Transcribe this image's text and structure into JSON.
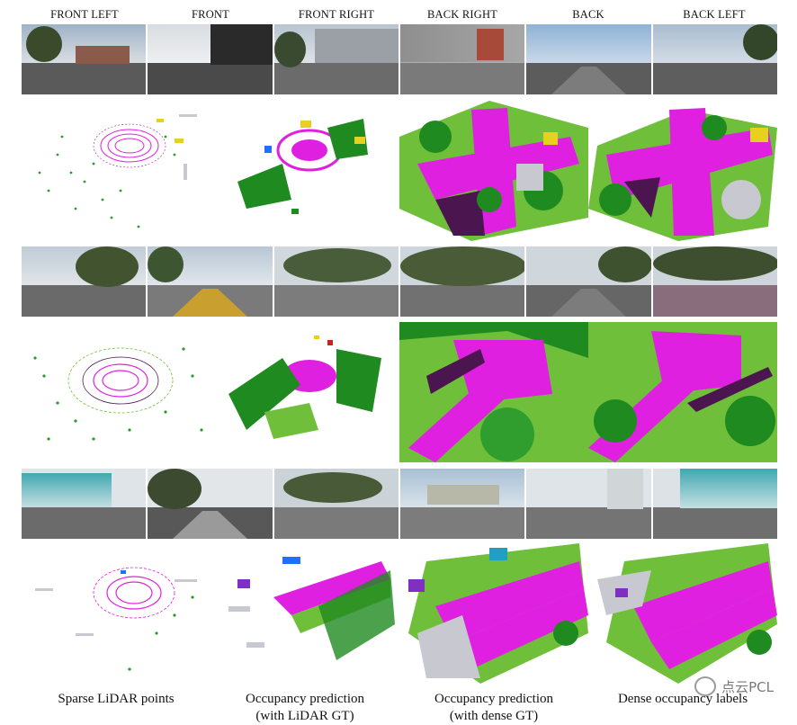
{
  "camera_labels": [
    "FRONT LEFT",
    "FRONT",
    "FRONT RIGHT",
    "BACK RIGHT",
    "BACK",
    "BACK LEFT"
  ],
  "captions": [
    {
      "line1": "Sparse LiDAR points",
      "line2": ""
    },
    {
      "line1": "Occupancy prediction",
      "line2": "(with LiDAR GT)"
    },
    {
      "line1": "Occupancy prediction",
      "line2": "(with dense GT)"
    },
    {
      "line1": "Dense occupancy labels",
      "line2": ""
    }
  ],
  "watermark": "点云PCL",
  "colors": {
    "road": "#e020e0",
    "sidewalk": "#4b1650",
    "terrain": "#6fbf3a",
    "vegetation": "#1f8a1f",
    "manmade": "#c8c8d0",
    "car": "#2070ff",
    "truck": "#e8d020",
    "barrier": "#ff7800",
    "pedestrian": "#d02020"
  },
  "scenes": [
    {
      "tone": "urban"
    },
    {
      "tone": "park"
    },
    {
      "tone": "residential"
    }
  ],
  "icons": [
    "wechat-icon"
  ]
}
